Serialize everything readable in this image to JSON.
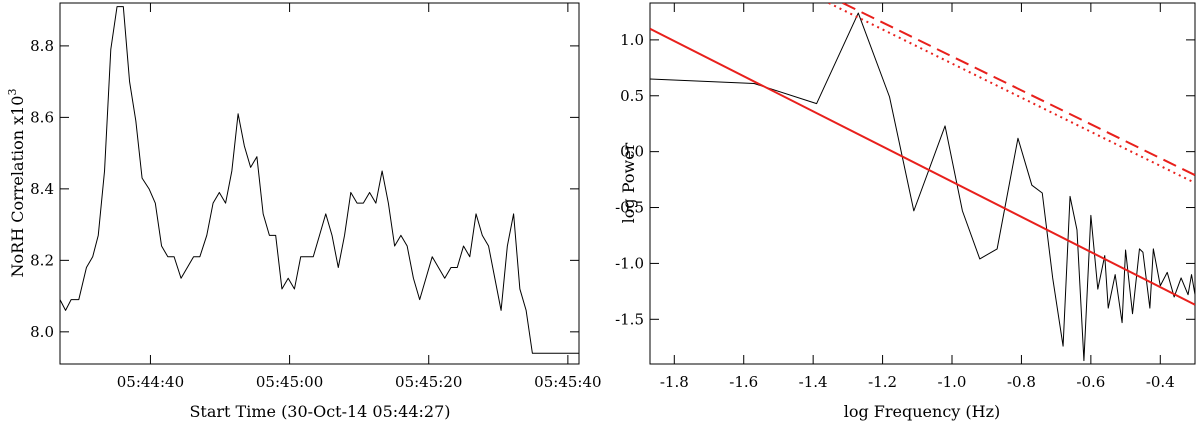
{
  "chart_data": [
    {
      "type": "line",
      "title": "",
      "xlabel": "Start Time (30-Oct-14 05:44:27)",
      "ylabel": "NoRH Correlation x10",
      "ylabel_superscript": "3",
      "x_unit": "seconds since start time",
      "xlim": [
        0,
        74.6
      ],
      "ylim": [
        7.91,
        8.92
      ],
      "x_ticks": [
        {
          "value": 13,
          "label": "05:44:40"
        },
        {
          "value": 33,
          "label": "05:45:00"
        },
        {
          "value": 53,
          "label": "05:45:20"
        },
        {
          "value": 73,
          "label": "05:45:40"
        }
      ],
      "y_ticks": [
        {
          "value": 8.0,
          "label": "8.0"
        },
        {
          "value": 8.2,
          "label": "8.2"
        },
        {
          "value": 8.4,
          "label": "8.4"
        },
        {
          "value": 8.6,
          "label": "8.6"
        },
        {
          "value": 8.8,
          "label": "8.8"
        }
      ],
      "grid": false,
      "series": [
        {
          "name": "",
          "color": "#000000",
          "x": [
            0,
            0.8,
            1.6,
            2.7,
            3.8,
            4.7,
            5.5,
            6.4,
            7.3,
            8.2,
            9.1,
            10.0,
            10.9,
            11.8,
            12.8,
            13.7,
            14.6,
            15.5,
            16.4,
            17.4,
            18.3,
            19.2,
            20.1,
            21.1,
            22.0,
            22.9,
            23.8,
            24.7,
            25.6,
            26.5,
            27.4,
            28.3,
            29.2,
            30.1,
            31.0,
            31.9,
            32.8,
            33.7,
            34.6,
            35.5,
            36.4,
            37.3,
            38.2,
            39.1,
            40.0,
            40.9,
            41.8,
            42.7,
            43.6,
            44.5,
            45.4,
            46.3,
            47.2,
            48.1,
            49.0,
            49.9,
            50.8,
            51.7,
            52.6,
            53.5,
            54.4,
            55.3,
            56.2,
            57.1,
            58.0,
            58.9,
            59.8,
            60.7,
            61.6,
            62.5,
            63.4,
            64.3,
            65.2,
            66.1,
            67.0,
            67.9,
            68.8,
            69.7,
            70.6,
            71.5,
            72.4,
            73.3,
            74.2,
            74.6
          ],
          "y": [
            8.09,
            8.06,
            8.09,
            8.09,
            8.18,
            8.21,
            8.27,
            8.45,
            8.79,
            8.91,
            8.91,
            8.7,
            8.59,
            8.43,
            8.4,
            8.36,
            8.24,
            8.21,
            8.21,
            8.15,
            8.18,
            8.21,
            8.21,
            8.27,
            8.36,
            8.39,
            8.36,
            8.45,
            8.61,
            8.52,
            8.46,
            8.49,
            8.33,
            8.27,
            8.27,
            8.12,
            8.15,
            8.12,
            8.21,
            8.21,
            8.21,
            8.27,
            8.33,
            8.27,
            8.18,
            8.27,
            8.39,
            8.36,
            8.36,
            8.39,
            8.36,
            8.45,
            8.36,
            8.24,
            8.27,
            8.24,
            8.15,
            8.09,
            8.15,
            8.21,
            8.18,
            8.15,
            8.18,
            8.18,
            8.24,
            8.21,
            8.33,
            8.27,
            8.24,
            8.15,
            8.06,
            8.24,
            8.33,
            8.12,
            8.06,
            7.94,
            7.94,
            7.94,
            7.94,
            7.94,
            7.94,
            7.94,
            7.94,
            7.94
          ]
        }
      ]
    },
    {
      "type": "line",
      "title": "",
      "xlabel": "log Frequency (Hz)",
      "ylabel": "log Power",
      "xlim": [
        -1.87,
        -0.3
      ],
      "ylim": [
        -1.9,
        1.33
      ],
      "x_ticks": [
        {
          "value": -1.8,
          "label": "-1.8"
        },
        {
          "value": -1.6,
          "label": "-1.6"
        },
        {
          "value": -1.4,
          "label": "-1.4"
        },
        {
          "value": -1.2,
          "label": "-1.2"
        },
        {
          "value": -1.0,
          "label": "-1.0"
        },
        {
          "value": -0.8,
          "label": "-0.8"
        },
        {
          "value": -0.6,
          "label": "-0.6"
        },
        {
          "value": -0.4,
          "label": "-0.4"
        }
      ],
      "y_ticks": [
        {
          "value": -1.5,
          "label": "-1.5"
        },
        {
          "value": -1.0,
          "label": "-1.0"
        },
        {
          "value": -0.5,
          "label": "-0.5"
        },
        {
          "value": 0.0,
          "label": "0.0"
        },
        {
          "value": 0.5,
          "label": "0.5"
        },
        {
          "value": 1.0,
          "label": "1.0"
        }
      ],
      "grid": false,
      "series": [
        {
          "name": "",
          "color": "#000000",
          "style": "solid",
          "x": [
            -1.87,
            -1.57,
            -1.39,
            -1.27,
            -1.18,
            -1.11,
            -1.02,
            -0.97,
            -0.92,
            -0.87,
            -0.81,
            -0.77,
            -0.74,
            -0.71,
            -0.68,
            -0.66,
            -0.64,
            -0.62,
            -0.6,
            -0.58,
            -0.56,
            -0.55,
            -0.53,
            -0.51,
            -0.5,
            -0.48,
            -0.46,
            -0.45,
            -0.43,
            -0.42,
            -0.4,
            -0.38,
            -0.36,
            -0.34,
            -0.32,
            -0.31,
            -0.3
          ],
          "y": [
            0.65,
            0.61,
            0.43,
            1.24,
            0.49,
            -0.53,
            0.23,
            -0.53,
            -0.96,
            -0.87,
            0.12,
            -0.3,
            -0.37,
            -1.13,
            -1.74,
            -0.4,
            -0.7,
            -1.87,
            -0.57,
            -1.23,
            -0.93,
            -1.4,
            -1.1,
            -1.53,
            -0.88,
            -1.45,
            -0.87,
            -0.9,
            -1.4,
            -0.87,
            -1.2,
            -1.08,
            -1.3,
            -1.13,
            -1.28,
            -1.1,
            -1.28
          ]
        },
        {
          "name": "",
          "color": "#e8201c",
          "style": "solid",
          "x": [
            -1.87,
            -0.3
          ],
          "y": [
            1.1,
            -1.37
          ]
        },
        {
          "name": "",
          "color": "#e8201c",
          "style": "dotted",
          "x": [
            -1.355,
            -0.3
          ],
          "y": [
            1.33,
            -0.28
          ]
        },
        {
          "name": "",
          "color": "#e8201c",
          "style": "dashed",
          "x": [
            -1.315,
            -0.3
          ],
          "y": [
            1.33,
            -0.21
          ]
        }
      ]
    }
  ]
}
